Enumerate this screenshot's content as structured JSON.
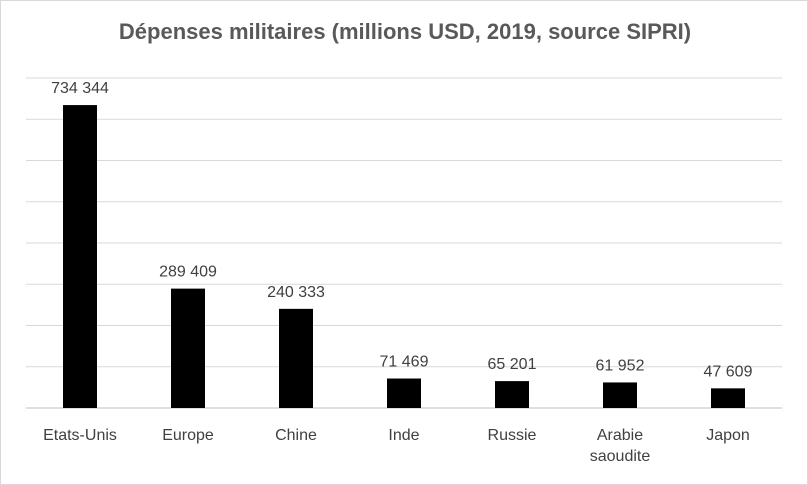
{
  "chart_data": {
    "type": "bar",
    "title": "Dépenses militaires (millions USD, 2019, source SIPRI)",
    "categories": [
      "Etats-Unis",
      "Europe",
      "Chine",
      "Inde",
      "Russie",
      "Arabie saoudite",
      "Japon"
    ],
    "category_lines": [
      [
        "Etats-Unis"
      ],
      [
        "Europe"
      ],
      [
        "Chine"
      ],
      [
        "Inde"
      ],
      [
        "Russie"
      ],
      [
        "Arabie",
        "saoudite"
      ],
      [
        "Japon"
      ]
    ],
    "values": [
      734344,
      289409,
      240333,
      71469,
      65201,
      61952,
      47609
    ],
    "data_labels": [
      "734 344",
      "289 409",
      "240 333",
      "71 469",
      "65 201",
      "61 952",
      "47 609"
    ],
    "xlabel": "",
    "ylabel": "",
    "ylim": [
      0,
      800000
    ],
    "grid": true,
    "legend": "none",
    "bar_color": "#000000",
    "grid_color": "#d9d9d9"
  }
}
